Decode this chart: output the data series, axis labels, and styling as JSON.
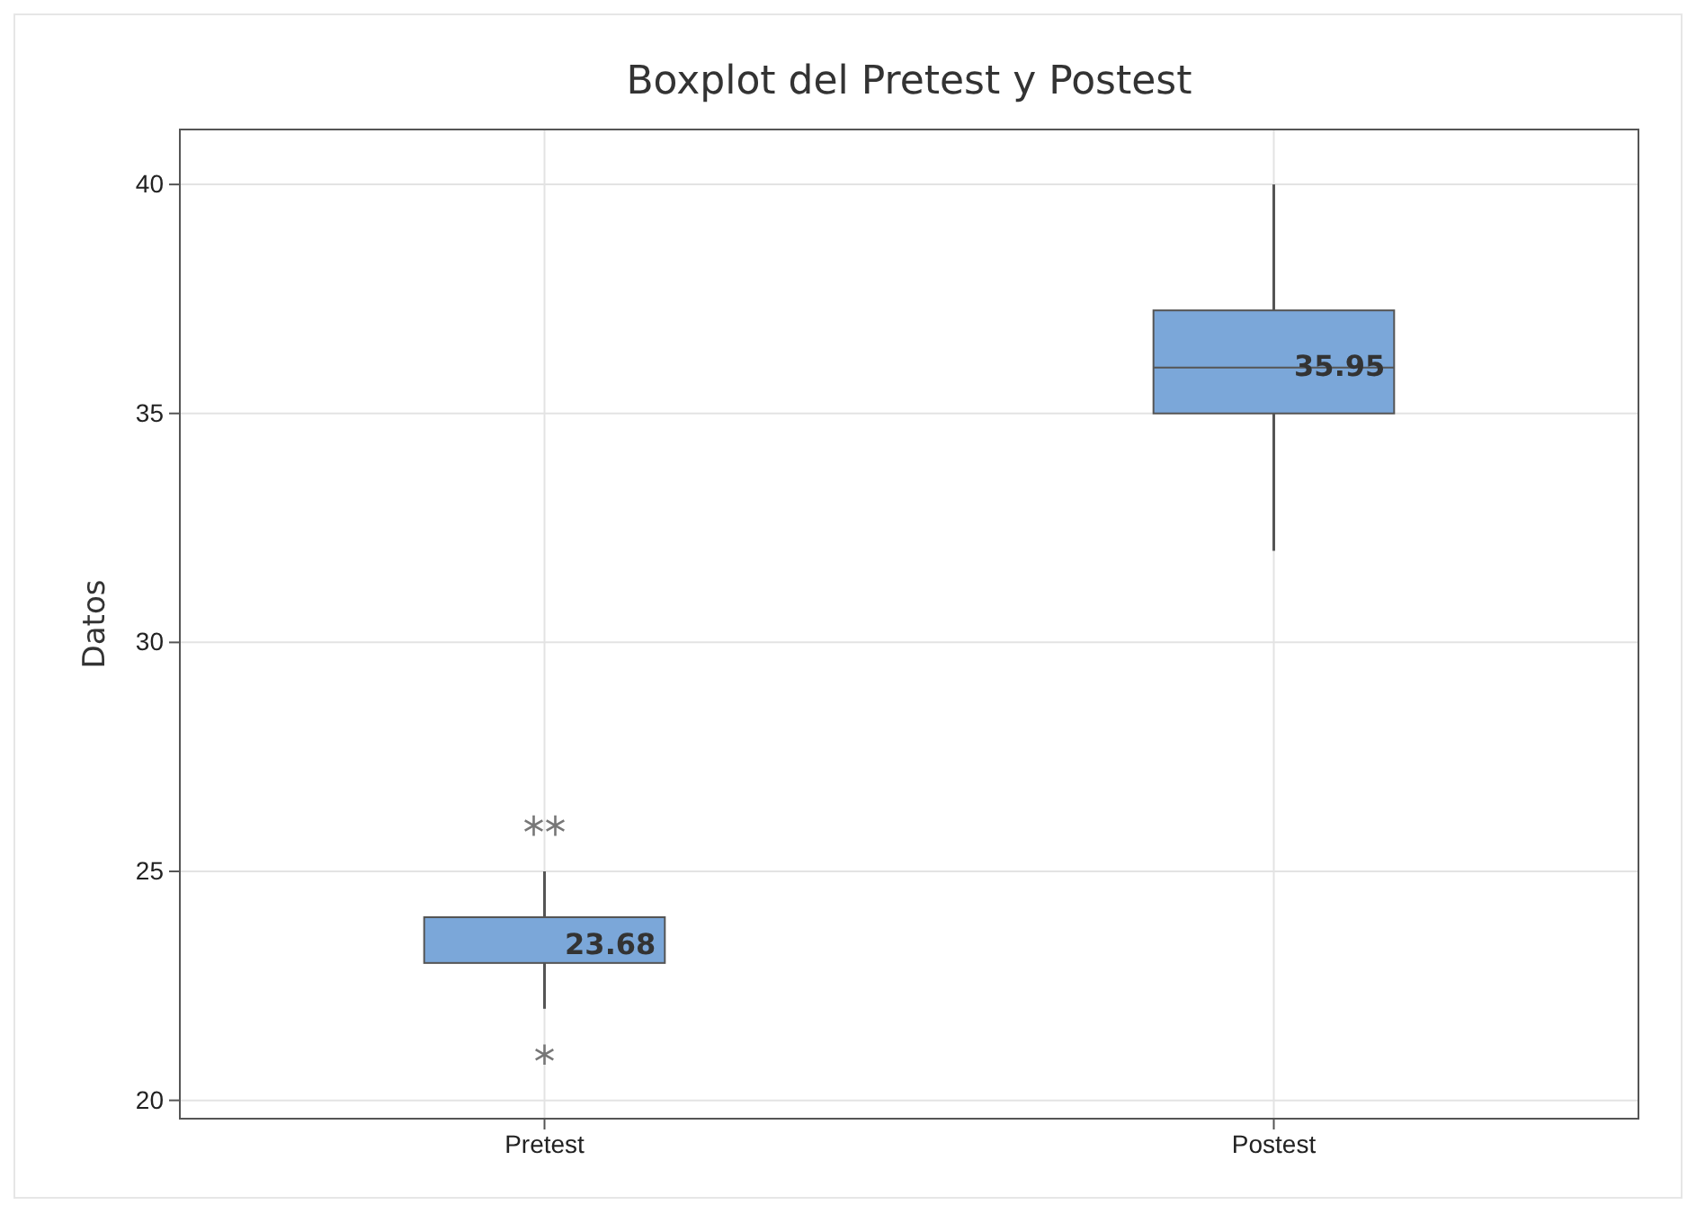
{
  "chart_data": {
    "type": "box",
    "title": "Boxplot del Pretest y Postest",
    "ylabel": "Datos",
    "categories": [
      "Pretest",
      "Postest"
    ],
    "boxes": [
      {
        "low": 22,
        "q1": 23,
        "median": 24,
        "q3": 24,
        "high": 25,
        "outliers": [
          26,
          26,
          21
        ]
      },
      {
        "low": 32,
        "q1": 35,
        "median": 36,
        "q3": 37.25,
        "high": 40
      }
    ],
    "annotations": [
      "23.68",
      "35.95"
    ],
    "color": "#7ba7d9",
    "ylim": [
      19.6,
      41.2
    ],
    "yticks": [
      20,
      25,
      30,
      35,
      40
    ],
    "grid": true
  }
}
